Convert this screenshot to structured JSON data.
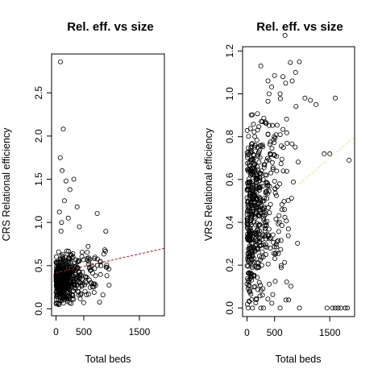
{
  "chart_data": [
    {
      "type": "scatter",
      "title": "Rel. eff. vs size",
      "xlabel": "Total beds",
      "ylabel": "CRS Relational efficiency",
      "xlim": [
        -80,
        1950
      ],
      "ylim": [
        -0.08,
        2.95
      ],
      "xticks": [
        0,
        500,
        1500
      ],
      "yticks": [
        0.0,
        0.5,
        1.0,
        1.5,
        2.0,
        2.5
      ],
      "xtick_labels": [
        "0",
        "500",
        "1500"
      ],
      "ytick_labels": [
        "0.0",
        "0.5",
        "1.0",
        "1.5",
        "2.0",
        "2.5"
      ],
      "grid": false,
      "trend": {
        "x": [
          0,
          1950
        ],
        "y": [
          0.42,
          0.7
        ],
        "color": "#b22222"
      },
      "outliers": [
        [
          80,
          2.86
        ],
        [
          130,
          2.08
        ],
        [
          75,
          1.75
        ],
        [
          110,
          1.6
        ],
        [
          180,
          1.48
        ],
        [
          250,
          1.38
        ],
        [
          320,
          1.5
        ],
        [
          380,
          1.18
        ],
        [
          150,
          1.25
        ],
        [
          60,
          1.12
        ],
        [
          100,
          1.0
        ],
        [
          220,
          1.05
        ],
        [
          90,
          0.9
        ],
        [
          420,
          0.95
        ]
      ],
      "cloud": {
        "n": 520,
        "xmax": 1900,
        "base": 0.32,
        "slope_per_1000": 0.15,
        "spread": 0.12,
        "seed": 7
      }
    },
    {
      "type": "scatter",
      "title": "Rel. eff. vs size",
      "xlabel": "Total beds",
      "ylabel": "VRS Relational efficiency",
      "xlim": [
        -80,
        1950
      ],
      "ylim": [
        -0.04,
        1.22
      ],
      "xticks": [
        0,
        500,
        1500
      ],
      "yticks": [
        0.0,
        0.2,
        0.4,
        0.6,
        0.8,
        1.0,
        1.2
      ],
      "xtick_labels": [
        "0",
        "500",
        "1500"
      ],
      "ytick_labels": [
        "0.0",
        "0.2",
        "0.4",
        "0.6",
        "0.8",
        "1.0",
        "1.2"
      ],
      "grid": false,
      "trend": {
        "x": [
          950,
          1950
        ],
        "y": [
          0.58,
          0.8
        ],
        "color": "#e6e68a"
      },
      "outliers": [
        [
          20,
          0.0
        ],
        [
          100,
          0.0
        ],
        [
          250,
          0.0
        ],
        [
          300,
          0.0
        ],
        [
          600,
          0.0
        ],
        [
          950,
          0.0
        ],
        [
          1450,
          0.0
        ],
        [
          1550,
          0.0
        ],
        [
          1600,
          0.0
        ],
        [
          1650,
          0.0
        ],
        [
          1700,
          0.0
        ],
        [
          1780,
          0.0
        ],
        [
          1820,
          0.0
        ],
        [
          280,
          0.06
        ],
        [
          250,
          1.13
        ],
        [
          950,
          1.15
        ],
        [
          880,
          1.1
        ],
        [
          650,
          1.08
        ],
        [
          400,
          1.0
        ],
        [
          600,
          1.0
        ],
        [
          1050,
          0.98
        ],
        [
          1250,
          0.95
        ],
        [
          1600,
          0.98
        ],
        [
          1850,
          0.69
        ],
        [
          1400,
          0.72
        ],
        [
          1500,
          0.72
        ],
        [
          380,
          1.06
        ],
        [
          700,
          1.05
        ],
        [
          820,
          1.06
        ],
        [
          1150,
          0.97
        ]
      ],
      "cloud": {
        "n": 560,
        "xmax": 1850,
        "base": 0.4,
        "slope_per_1000": 0.25,
        "spread": 0.18,
        "seed": 13
      }
    }
  ]
}
